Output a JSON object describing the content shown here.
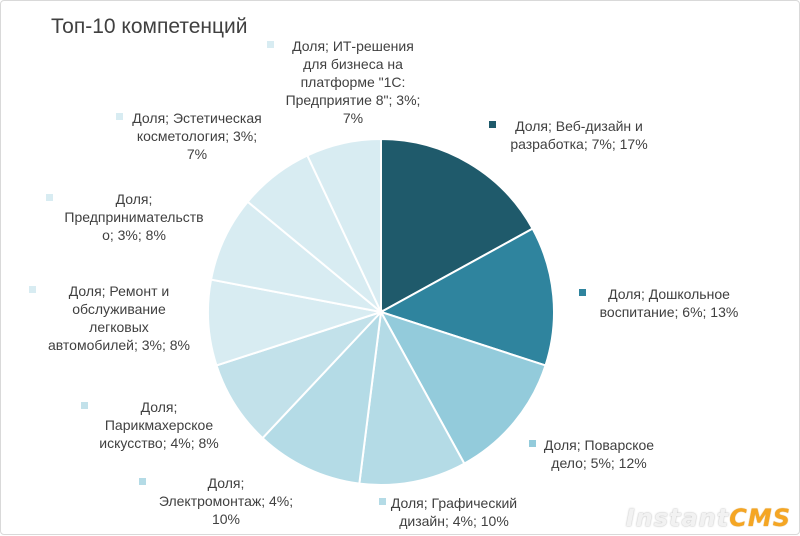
{
  "chart_data": {
    "type": "pie",
    "title": "Топ-10 компетенций",
    "series_name": "Доля",
    "slices": [
      {
        "category": "Веб-дизайн и разработка",
        "value": 17,
        "label": "Доля; Веб-дизайн и\nразработка; 7%; 17%",
        "color": "#1f5a6b"
      },
      {
        "category": "Дошкольное воспитание",
        "value": 13,
        "label": "Доля; Дошкольное\nвоспитание; 6%; 13%",
        "color": "#2f849e"
      },
      {
        "category": "Поварское дело",
        "value": 12,
        "label": "Доля; Поварское\nдело; 5%; 12%",
        "color": "#93cbdb"
      },
      {
        "category": "Графический дизайн",
        "value": 10,
        "label": "Доля; Графический\nдизайн; 4%; 10%",
        "color": "#b4dbe6"
      },
      {
        "category": "Электромонтаж",
        "value": 10,
        "label": "Доля;\nЭлектромонтаж; 4%;\n10%",
        "color": "#b4dbe6"
      },
      {
        "category": "Парикмахерское искусство",
        "value": 8,
        "label": "Доля;\nПарикмахерское\nискусство; 4%; 8%",
        "color": "#c2e1ea"
      },
      {
        "category": "Ремонт и обслуживание легковых автомобилей",
        "value": 8,
        "label": "Доля; Ремонт и\nобслуживание\nлегковых\nавтомобилей; 3%; 8%",
        "color": "#d8ecf2"
      },
      {
        "category": "Предпринимательство",
        "value": 8,
        "label": "Доля;\nПредпринимательств\nо; 3%; 8%",
        "color": "#d8ecf2"
      },
      {
        "category": "Эстетическая косметология",
        "value": 7,
        "label": "Доля; Эстетическая\nкосметология; 3%;\n7%",
        "color": "#d8ecf2"
      },
      {
        "category": "ИТ-решения для бизнеса на платформе \"1С: Предприятие 8\"",
        "value": 7,
        "label": "Доля; ИТ-решения\nдля бизнеса на\nплатформе \"1С:\nПредприятие 8\"; 3%;\n7%",
        "color": "#d8ecf2"
      }
    ]
  },
  "watermark": {
    "part1": "Instant",
    "part2": "CMS"
  }
}
